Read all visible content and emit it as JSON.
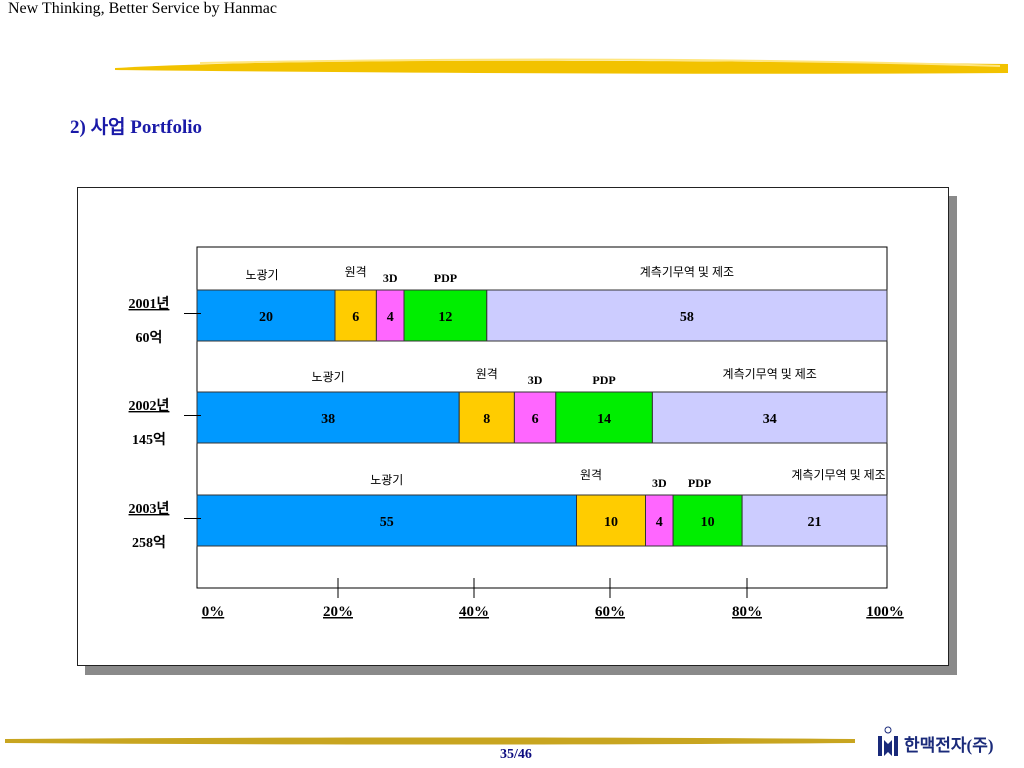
{
  "header": {
    "tagline": "New Thinking, Better Service by Hanmac",
    "title": "2)  사업 Portfolio"
  },
  "footer": {
    "page": "35/46",
    "company": "한맥전자(주)",
    "logo_mark": "HM"
  },
  "colors": {
    "segments": [
      "#0099ff",
      "#ffcc00",
      "#ff66ff",
      "#00ee00",
      "#ccccff"
    ],
    "title": "#1a1aa8",
    "decor_line": "#f2c200"
  },
  "chart_data": {
    "type": "bar",
    "orientation": "horizontal",
    "stacked": true,
    "normalized": true,
    "segment_names": [
      "노광기",
      "원격",
      "3D",
      "PDP",
      "계측기무역 및 제조"
    ],
    "rows": [
      {
        "year": "2001년",
        "total": "60억",
        "values": [
          20,
          6,
          4,
          12,
          58
        ],
        "labels": [
          "20",
          "6",
          "4",
          "12",
          "58"
        ]
      },
      {
        "year": "2002년",
        "total": "145억",
        "values": [
          38,
          8,
          6,
          14,
          34
        ],
        "labels": [
          "38",
          "8",
          "6",
          "14",
          "34"
        ]
      },
      {
        "year": "2003년",
        "total": "258억",
        "values": [
          55,
          10,
          4,
          10,
          21
        ],
        "labels": [
          "55",
          "10",
          "4",
          "10",
          "21"
        ]
      }
    ],
    "x_ticks": [
      "0%",
      "20%",
      "40%",
      "60%",
      "80%",
      "100%"
    ],
    "xlim": [
      0,
      100
    ]
  }
}
